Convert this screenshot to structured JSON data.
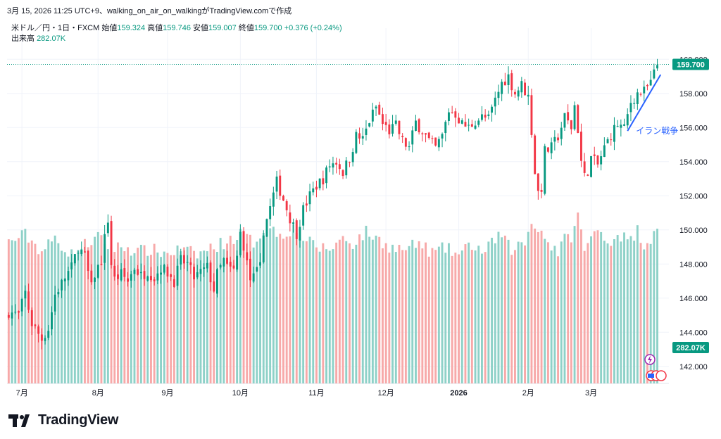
{
  "header": {
    "snapshot_text": "3月 15, 2026 11:25 UTC+9、walking_on_air_on_walkingがTradingView.comで作成"
  },
  "legend": {
    "symbol": "米ドル／円・1日・FXCM",
    "open_label": "始値",
    "open_value": "159.324",
    "high_label": "高値",
    "high_value": "159.746",
    "low_label": "安値",
    "low_value": "159.007",
    "close_label": "終値",
    "close_value": "159.700",
    "change": "+0.376 (+0.24%)",
    "volume_label": "出来高",
    "volume_value": "282.07K"
  },
  "price_badge": "159.700",
  "volume_badge": "282.07K",
  "annotation": "イラン戦争",
  "brand": "TradingView",
  "colors": {
    "up": "#089981",
    "down": "#f23645",
    "vol_up": "#8ed1c8",
    "vol_down": "#f7a9a9",
    "trend": "#2962ff",
    "grid": "#f0f3fa",
    "text": "#131722"
  },
  "chart_data": {
    "type": "candlestick",
    "title": "米ドル／円・1日・FXCM",
    "ylim": [
      141,
      161
    ],
    "y_ticks": [
      "142.000",
      "144.000",
      "146.000",
      "148.000",
      "150.000",
      "152.000",
      "154.000",
      "156.000",
      "158.000",
      "160.000"
    ],
    "x_ticks": [
      {
        "label": "7月",
        "index": 4
      },
      {
        "label": "8月",
        "index": 27
      },
      {
        "label": "9月",
        "index": 48
      },
      {
        "label": "10月",
        "index": 70
      },
      {
        "label": "11月",
        "index": 93
      },
      {
        "label": "12月",
        "index": 114
      },
      {
        "label": "2026",
        "index": 136
      },
      {
        "label": "2月",
        "index": 157
      },
      {
        "label": "3月",
        "index": 176
      }
    ],
    "close_path": [
      [
        0,
        145.2
      ],
      [
        3,
        145.0
      ],
      [
        5,
        146.3
      ],
      [
        7,
        144.5
      ],
      [
        10,
        143.6
      ],
      [
        12,
        144.2
      ],
      [
        14,
        146.2
      ],
      [
        17,
        147.2
      ],
      [
        19,
        147.8
      ],
      [
        21,
        149.0
      ],
      [
        23,
        148.4
      ],
      [
        25,
        146.6
      ],
      [
        26,
        147.4
      ],
      [
        28,
        148.2
      ],
      [
        29,
        149.5
      ],
      [
        30,
        150.6
      ],
      [
        31,
        148.0
      ],
      [
        32,
        147.1
      ],
      [
        34,
        147.4
      ],
      [
        36,
        147.0
      ],
      [
        38,
        147.8
      ],
      [
        40,
        147.3
      ],
      [
        42,
        147.6
      ],
      [
        44,
        147.2
      ],
      [
        46,
        147.8
      ],
      [
        48,
        147.5
      ],
      [
        50,
        147.0
      ],
      [
        52,
        148.2
      ],
      [
        54,
        148.0
      ],
      [
        56,
        147.2
      ],
      [
        58,
        147.5
      ],
      [
        60,
        147.8
      ],
      [
        62,
        146.5
      ],
      [
        63,
        147.4
      ],
      [
        65,
        148.2
      ],
      [
        66,
        147.8
      ],
      [
        68,
        147.6
      ],
      [
        69,
        148.4
      ],
      [
        70,
        149.8
      ],
      [
        71,
        149.1
      ],
      [
        72,
        148.0
      ],
      [
        73,
        147.1
      ],
      [
        74,
        147.2
      ],
      [
        76,
        147.8
      ],
      [
        77,
        150.0
      ],
      [
        79,
        151.3
      ],
      [
        81,
        152.8
      ],
      [
        83,
        151.8
      ],
      [
        85,
        150.7
      ],
      [
        87,
        149.8
      ],
      [
        89,
        151.2
      ],
      [
        91,
        152.0
      ],
      [
        93,
        152.6
      ],
      [
        95,
        153.0
      ],
      [
        97,
        153.8
      ],
      [
        99,
        154.0
      ],
      [
        101,
        153.4
      ],
      [
        103,
        154.2
      ],
      [
        105,
        155.5
      ],
      [
        107,
        155.3
      ],
      [
        109,
        156.4
      ],
      [
        111,
        157.2
      ],
      [
        113,
        156.2
      ],
      [
        115,
        155.8
      ],
      [
        117,
        156.1
      ],
      [
        119,
        155.2
      ],
      [
        121,
        154.8
      ],
      [
        123,
        156.3
      ],
      [
        125,
        155.8
      ],
      [
        127,
        155.2
      ],
      [
        129,
        154.8
      ],
      [
        131,
        155.5
      ],
      [
        133,
        157.0
      ],
      [
        135,
        156.8
      ],
      [
        137,
        156.2
      ],
      [
        139,
        156.0
      ],
      [
        141,
        156.4
      ],
      [
        143,
        156.6
      ],
      [
        145,
        156.5
      ],
      [
        147,
        157.6
      ],
      [
        149,
        158.6
      ],
      [
        151,
        159.0
      ],
      [
        153,
        158.0
      ],
      [
        155,
        158.5
      ],
      [
        157,
        157.8
      ],
      [
        158,
        155.8
      ],
      [
        159,
        153.4
      ],
      [
        160,
        152.2
      ],
      [
        161,
        152.5
      ],
      [
        162,
        154.6
      ],
      [
        164,
        154.8
      ],
      [
        166,
        155.5
      ],
      [
        168,
        156.6
      ],
      [
        170,
        156.0
      ],
      [
        171,
        157.3
      ],
      [
        172,
        155.9
      ],
      [
        173,
        154.0
      ],
      [
        174,
        153.1
      ],
      [
        175,
        153.5
      ],
      [
        176,
        154.2
      ],
      [
        178,
        153.8
      ],
      [
        180,
        154.8
      ],
      [
        182,
        155.6
      ],
      [
        184,
        156.2
      ],
      [
        186,
        155.9
      ],
      [
        188,
        157.5
      ],
      [
        190,
        158.0
      ],
      [
        192,
        158.1
      ],
      [
        194,
        158.6
      ],
      [
        196,
        159.7
      ]
    ],
    "volume_path": [
      [
        0,
        248
      ],
      [
        5,
        262
      ],
      [
        10,
        232
      ],
      [
        14,
        255
      ],
      [
        19,
        226
      ],
      [
        23,
        244
      ],
      [
        27,
        256
      ],
      [
        31,
        238
      ],
      [
        35,
        240
      ],
      [
        39,
        232
      ],
      [
        43,
        235
      ],
      [
        48,
        228
      ],
      [
        52,
        236
      ],
      [
        57,
        226
      ],
      [
        61,
        238
      ],
      [
        66,
        250
      ],
      [
        70,
        262
      ],
      [
        74,
        248
      ],
      [
        78,
        276
      ],
      [
        82,
        262
      ],
      [
        86,
        272
      ],
      [
        90,
        250
      ],
      [
        93,
        240
      ],
      [
        97,
        236
      ],
      [
        101,
        256
      ],
      [
        104,
        246
      ],
      [
        108,
        266
      ],
      [
        112,
        252
      ],
      [
        116,
        238
      ],
      [
        120,
        236
      ],
      [
        124,
        246
      ],
      [
        128,
        230
      ],
      [
        132,
        238
      ],
      [
        136,
        226
      ],
      [
        140,
        244
      ],
      [
        144,
        230
      ],
      [
        148,
        262
      ],
      [
        152,
        236
      ],
      [
        156,
        248
      ],
      [
        158,
        282
      ],
      [
        160,
        276
      ],
      [
        163,
        248
      ],
      [
        166,
        232
      ],
      [
        168,
        252
      ],
      [
        170,
        260
      ],
      [
        172,
        294
      ],
      [
        174,
        236
      ],
      [
        176,
        254
      ],
      [
        178,
        270
      ],
      [
        180,
        262
      ],
      [
        182,
        244
      ],
      [
        184,
        266
      ],
      [
        186,
        256
      ],
      [
        188,
        250
      ],
      [
        190,
        270
      ],
      [
        192,
        246
      ],
      [
        194,
        254
      ],
      [
        196,
        282
      ]
    ],
    "volume_ylim": [
      0,
      600
    ],
    "current_price": 159.7,
    "current_volume": "282.07K",
    "trendline": {
      "from": [
        187,
        155.8
      ],
      "to": [
        197,
        159.1
      ],
      "label": "イラン戦争"
    }
  }
}
